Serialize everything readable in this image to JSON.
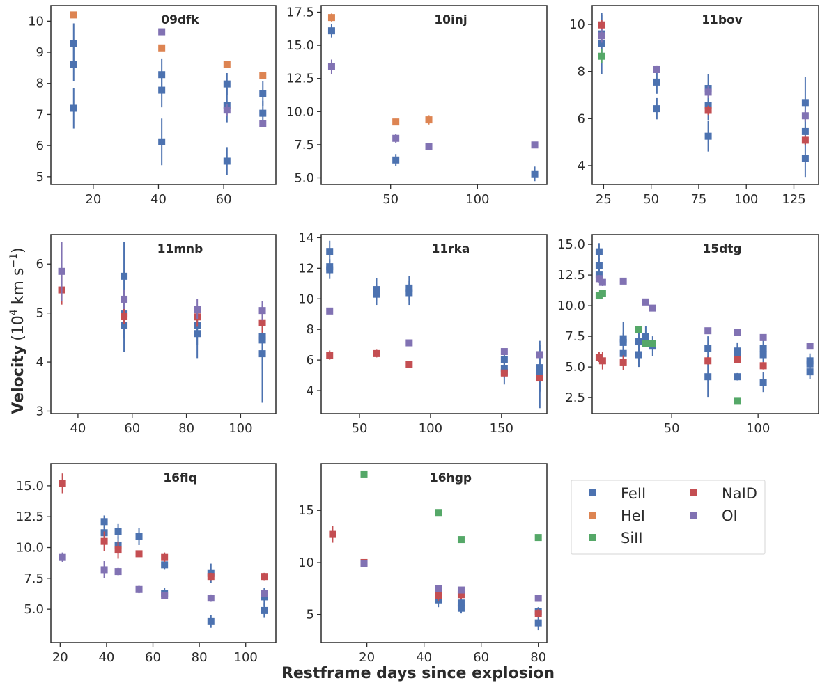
{
  "figure": {
    "ylabel_main": "Velocity",
    "ylabel_units": "(10",
    "ylabel_exp": "4",
    "ylabel_units2": " km s",
    "ylabel_exp2": "−1",
    "ylabel_close": ")",
    "xlabel": "Restframe days since explosion"
  },
  "legend": {
    "entries": [
      {
        "name": "FeII",
        "color": "#4c72b0"
      },
      {
        "name": "NaID",
        "color": "#c44e52"
      },
      {
        "name": "HeI",
        "color": "#dd8452"
      },
      {
        "name": "OI",
        "color": "#8172b3"
      },
      {
        "name": "SiII",
        "color": "#55a868"
      }
    ]
  },
  "colors": {
    "FeII": "#4c72b0",
    "HeI": "#dd8452",
    "SiII": "#55a868",
    "NaID": "#c44e52",
    "OI": "#8172b3"
  },
  "chart_data": [
    {
      "type": "scatter",
      "title": "09dfk",
      "xlim": [
        7,
        76
      ],
      "ylim": [
        4.75,
        10.5
      ],
      "xticks": [
        20,
        40,
        60
      ],
      "yticks": [
        5,
        6,
        7,
        8,
        9,
        10
      ],
      "series": [
        {
          "name": "FeII",
          "points": [
            [
              14,
              9.28,
              0.65
            ],
            [
              14,
              8.62,
              0.55
            ],
            [
              14,
              7.2,
              0.65
            ],
            [
              41,
              8.28,
              0.5
            ],
            [
              41,
              7.78,
              0.55
            ],
            [
              41,
              6.12,
              0.75
            ],
            [
              61,
              7.98,
              0.35
            ],
            [
              61,
              7.3,
              0.55
            ],
            [
              61,
              5.5,
              0.45
            ],
            [
              72,
              7.68,
              0.4
            ],
            [
              72,
              7.04,
              0.4
            ]
          ]
        },
        {
          "name": "HeI",
          "points": [
            [
              14,
              10.2,
              0
            ],
            [
              41,
              9.14,
              0
            ],
            [
              61,
              8.62,
              0
            ],
            [
              72,
              8.24,
              0
            ]
          ]
        },
        {
          "name": "OI",
          "points": [
            [
              41,
              9.66,
              0
            ],
            [
              61,
              7.14,
              0.2
            ],
            [
              72,
              6.7,
              0
            ]
          ]
        }
      ]
    },
    {
      "type": "scatter",
      "title": "10inj",
      "xlim": [
        10,
        140
      ],
      "ylim": [
        4.5,
        18
      ],
      "xticks": [
        50,
        100
      ],
      "yticks": [
        5.0,
        7.5,
        10.0,
        12.5,
        15.0,
        17.5
      ],
      "series": [
        {
          "name": "FeII",
          "points": [
            [
              16,
              16.1,
              0.5
            ],
            [
              53,
              6.35,
              0.45
            ],
            [
              133,
              5.3,
              0.55
            ]
          ]
        },
        {
          "name": "HeI",
          "points": [
            [
              16,
              17.1,
              0.3
            ],
            [
              53,
              9.22,
              0.25
            ],
            [
              72,
              9.38,
              0.35
            ]
          ]
        },
        {
          "name": "OI",
          "points": [
            [
              16,
              13.38,
              0.55
            ],
            [
              53,
              7.98,
              0.35
            ],
            [
              72,
              7.35,
              0.25
            ],
            [
              133,
              7.48,
              0.2
            ]
          ]
        }
      ]
    },
    {
      "type": "scatter",
      "title": "11bov",
      "xlim": [
        19,
        138
      ],
      "ylim": [
        3.2,
        10.8
      ],
      "xticks": [
        25,
        50,
        75,
        100,
        125
      ],
      "yticks": [
        4,
        6,
        8,
        10
      ],
      "series": [
        {
          "name": "FeII",
          "points": [
            [
              24,
              9.2,
              1.3
            ],
            [
              24,
              9.6,
              0.8
            ],
            [
              53,
              7.55,
              0.5
            ],
            [
              53,
              6.42,
              0.45
            ],
            [
              80,
              7.28,
              0.6
            ],
            [
              80,
              6.55,
              0.6
            ],
            [
              80,
              5.25,
              0.65
            ],
            [
              131,
              6.68,
              1.1
            ],
            [
              131,
              5.45,
              0.6
            ],
            [
              131,
              4.32,
              0.8
            ]
          ]
        },
        {
          "name": "NaID",
          "points": [
            [
              24,
              9.98,
              0.2
            ],
            [
              80,
              6.35,
              0.2
            ],
            [
              131,
              5.08,
              0.2
            ]
          ]
        },
        {
          "name": "SiII",
          "points": [
            [
              24,
              8.65,
              0.3
            ]
          ]
        },
        {
          "name": "OI",
          "points": [
            [
              24,
              9.52,
              0.3
            ],
            [
              53,
              8.08,
              0.15
            ],
            [
              80,
              7.12,
              0.25
            ],
            [
              131,
              6.12,
              0.25
            ]
          ]
        }
      ]
    },
    {
      "type": "scatter",
      "title": "11mnb",
      "xlim": [
        30,
        113
      ],
      "ylim": [
        2.95,
        6.6
      ],
      "xticks": [
        40,
        60,
        80,
        100
      ],
      "yticks": [
        3,
        4,
        5,
        6
      ],
      "series": [
        {
          "name": "FeII",
          "points": [
            [
              57,
              5.75,
              0.7
            ],
            [
              57,
              4.98,
              0.5
            ],
            [
              57,
              4.75,
              0.55
            ],
            [
              84,
              4.75,
              0.4
            ],
            [
              84,
              4.58,
              0.5
            ],
            [
              108,
              4.52,
              0.65
            ],
            [
              108,
              4.45,
              0.6
            ],
            [
              108,
              4.17,
              1.0
            ]
          ]
        },
        {
          "name": "NaID",
          "points": [
            [
              34,
              5.47,
              0.3
            ],
            [
              57,
              4.93,
              0.15
            ],
            [
              84,
              4.92,
              0.2
            ],
            [
              108,
              4.8,
              0.2
            ]
          ]
        },
        {
          "name": "OI",
          "points": [
            [
              34,
              5.85,
              0.6
            ],
            [
              57,
              5.28,
              0.2
            ],
            [
              84,
              5.08,
              0.2
            ],
            [
              108,
              5.05,
              0.2
            ]
          ]
        }
      ]
    },
    {
      "type": "scatter",
      "title": "11rka",
      "xlim": [
        23,
        182
      ],
      "ylim": [
        2.5,
        14.2
      ],
      "xticks": [
        50,
        100,
        150
      ],
      "yticks": [
        4,
        6,
        8,
        10,
        12,
        14
      ],
      "series": [
        {
          "name": "FeII",
          "points": [
            [
              29,
              13.1,
              0.7
            ],
            [
              29,
              12.1,
              0.5
            ],
            [
              29,
              11.9,
              0.6
            ],
            [
              62,
              10.6,
              0.75
            ],
            [
              62,
              10.3,
              0.7
            ],
            [
              85,
              10.7,
              0.8
            ],
            [
              85,
              10.4,
              0.8
            ],
            [
              152,
              6.05,
              0.6
            ],
            [
              152,
              5.45,
              0.6
            ],
            [
              152,
              5.2,
              0.8
            ],
            [
              177,
              5.5,
              1.5
            ],
            [
              177,
              5.2,
              1.3
            ],
            [
              177,
              5.05,
              2.2
            ]
          ]
        },
        {
          "name": "NaID",
          "points": [
            [
              29,
              6.32,
              0.3
            ],
            [
              62,
              6.42,
              0.25
            ],
            [
              85,
              5.72,
              0.2
            ],
            [
              152,
              5.15,
              0.2
            ],
            [
              177,
              4.82,
              0.2
            ]
          ]
        },
        {
          "name": "OI",
          "points": [
            [
              29,
              9.2,
              0.2
            ],
            [
              85,
              7.12,
              0.2
            ],
            [
              152,
              6.55,
              0.2
            ],
            [
              177,
              6.35,
              0.2
            ]
          ]
        }
      ]
    },
    {
      "type": "scatter",
      "title": "15dtg",
      "xlim": [
        4,
        135
      ],
      "ylim": [
        1.2,
        15.8
      ],
      "xticks": [
        50,
        100
      ],
      "yticks": [
        2.5,
        5.0,
        7.5,
        10.0,
        12.5,
        15.0
      ],
      "series": [
        {
          "name": "FeII",
          "points": [
            [
              8,
              14.4,
              0.7
            ],
            [
              8,
              13.3,
              0.6
            ],
            [
              8,
              12.5,
              0.6
            ],
            [
              22,
              7.3,
              1.4
            ],
            [
              22,
              7.0,
              0.8
            ],
            [
              22,
              6.1,
              0.7
            ],
            [
              31,
              7.05,
              0.8
            ],
            [
              31,
              6.0,
              1.0
            ],
            [
              35,
              7.5,
              0.8
            ],
            [
              39,
              6.7,
              0.8
            ],
            [
              71,
              6.5,
              1.0
            ],
            [
              71,
              4.2,
              1.7
            ],
            [
              88,
              6.3,
              0.7
            ],
            [
              88,
              6.0,
              0.6
            ],
            [
              88,
              4.2,
              0.3
            ],
            [
              103,
              6.5,
              0.7
            ],
            [
              103,
              6.0,
              0.6
            ],
            [
              103,
              3.75,
              0.8
            ],
            [
              130,
              5.5,
              0.6
            ],
            [
              130,
              5.25,
              0.6
            ],
            [
              130,
              4.6,
              0.6
            ]
          ]
        },
        {
          "name": "NaID",
          "points": [
            [
              8,
              5.8,
              0.4
            ],
            [
              10,
              5.5,
              0.7
            ],
            [
              22,
              5.35,
              0.6
            ],
            [
              71,
              5.5,
              0.3
            ],
            [
              88,
              5.6,
              0.3
            ],
            [
              103,
              5.1,
              0.3
            ]
          ]
        },
        {
          "name": "SiII",
          "points": [
            [
              8,
              10.8,
              0.2
            ],
            [
              10,
              11.0,
              0.2
            ],
            [
              31,
              8.05,
              0.3
            ],
            [
              35,
              6.9,
              0.2
            ],
            [
              39,
              6.9,
              0.2
            ],
            [
              88,
              2.2,
              0.2
            ]
          ]
        },
        {
          "name": "OI",
          "points": [
            [
              8,
              12.2,
              0.3
            ],
            [
              10,
              11.9,
              0.3
            ],
            [
              22,
              12.0,
              0.2
            ],
            [
              35,
              10.3,
              0.2
            ],
            [
              39,
              9.8,
              0.2
            ],
            [
              71,
              7.95,
              0.2
            ],
            [
              88,
              7.8,
              0.2
            ],
            [
              103,
              7.4,
              0.2
            ],
            [
              130,
              6.7,
              0.2
            ]
          ]
        }
      ]
    },
    {
      "type": "scatter",
      "title": "16flq",
      "xlim": [
        16,
        113
      ],
      "ylim": [
        2.3,
        16.8
      ],
      "xticks": [
        20,
        40,
        60,
        80,
        100
      ],
      "yticks": [
        5.0,
        7.5,
        10.0,
        12.5,
        15.0
      ],
      "series": [
        {
          "name": "FeII",
          "points": [
            [
              39,
              12.1,
              0.5
            ],
            [
              39,
              11.2,
              0.5
            ],
            [
              45,
              11.3,
              0.6
            ],
            [
              45,
              10.2,
              0.7
            ],
            [
              54,
              10.9,
              0.7
            ],
            [
              65,
              8.6,
              0.4
            ],
            [
              65,
              6.3,
              0.4
            ],
            [
              85,
              7.9,
              0.8
            ],
            [
              85,
              4.0,
              0.5
            ],
            [
              108,
              6.0,
              0.7
            ],
            [
              108,
              4.9,
              0.6
            ]
          ]
        },
        {
          "name": "NaID",
          "points": [
            [
              21,
              15.2,
              0.8
            ],
            [
              39,
              10.5,
              0.8
            ],
            [
              45,
              9.8,
              0.7
            ],
            [
              54,
              9.5,
              0.2
            ],
            [
              65,
              9.2,
              0.4
            ],
            [
              85,
              7.65,
              0.3
            ],
            [
              108,
              7.65,
              0.3
            ]
          ]
        },
        {
          "name": "OI",
          "points": [
            [
              21,
              9.2,
              0.4
            ],
            [
              39,
              8.2,
              0.7
            ],
            [
              45,
              8.05,
              0.3
            ],
            [
              54,
              6.6,
              0.3
            ],
            [
              65,
              6.1,
              0.3
            ],
            [
              85,
              5.9,
              0.3
            ],
            [
              108,
              6.3,
              0.3
            ]
          ]
        }
      ]
    },
    {
      "type": "scatter",
      "title": "16hgp",
      "xlim": [
        4,
        83
      ],
      "ylim": [
        2.3,
        19.5
      ],
      "xticks": [
        20,
        40,
        60,
        80
      ],
      "yticks": [
        5,
        10,
        15
      ],
      "series": [
        {
          "name": "FeII",
          "points": [
            [
              45,
              6.4,
              0.7
            ],
            [
              53,
              6.1,
              0.7
            ],
            [
              53,
              5.6,
              0.5
            ],
            [
              80,
              5.3,
              0.4
            ],
            [
              80,
              4.2,
              0.7
            ]
          ]
        },
        {
          "name": "NaID",
          "points": [
            [
              8,
              12.7,
              0.8
            ],
            [
              19,
              10.0,
              0.3
            ],
            [
              45,
              6.8,
              0.5
            ],
            [
              53,
              6.9,
              0.4
            ],
            [
              80,
              5.1,
              0.4
            ]
          ]
        },
        {
          "name": "SiII",
          "points": [
            [
              19,
              18.5,
              0
            ],
            [
              45,
              14.8,
              0
            ],
            [
              53,
              12.2,
              0
            ],
            [
              80,
              12.4,
              0
            ]
          ]
        },
        {
          "name": "OI",
          "points": [
            [
              19,
              9.9,
              0.2
            ],
            [
              45,
              7.5,
              0.2
            ],
            [
              53,
              7.35,
              0.2
            ],
            [
              80,
              6.55,
              0.3
            ]
          ]
        }
      ]
    }
  ]
}
